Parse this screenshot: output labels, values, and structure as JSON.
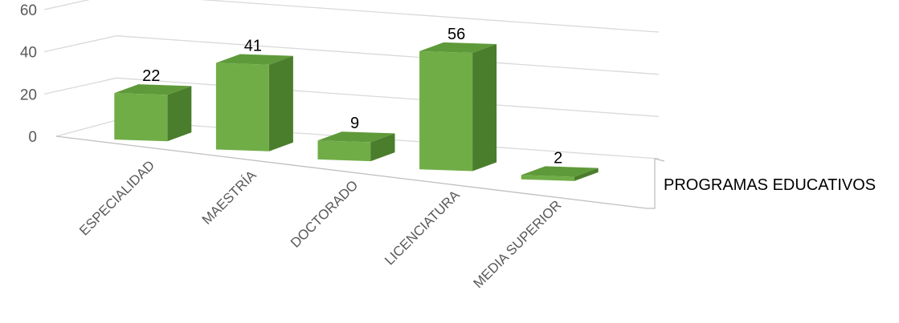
{
  "chart_data": {
    "type": "bar",
    "style": "3d-column",
    "categories": [
      "ESPECIALIDAD",
      "MAESTRÍA",
      "DOCTORADO",
      "LICENCIATURA",
      "MEDIA SUPERIOR"
    ],
    "series": [
      {
        "name": "PROGRAMAS EDUCATIVOS",
        "values": [
          22,
          41,
          9,
          56,
          2
        ]
      }
    ],
    "y_ticks": [
      "0",
      "20",
      "40",
      "60"
    ],
    "ylim": [
      0,
      60
    ],
    "grid": true,
    "legend": "series label on depth axis, right",
    "colors": {
      "bar_front": "#70ad47",
      "bar_top": "#5f9a3a",
      "bar_side": "#4a7d2c"
    }
  }
}
